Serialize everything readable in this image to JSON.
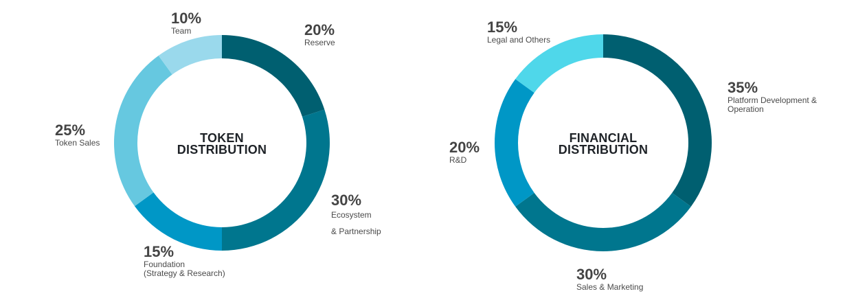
{
  "charts": [
    {
      "title_line1": "TOKEN",
      "title_line2": "DISTRIBUTION",
      "labels": [
        {
          "pct": "20%",
          "desc": "Reserve"
        },
        {
          "pct": "30%",
          "desc": "Ecosystem",
          "desc2": "& Partnership"
        },
        {
          "pct": "15%",
          "desc": "Foundation",
          "desc2": "(Strategy & Research)"
        },
        {
          "pct": "25%",
          "desc": "Token Sales"
        },
        {
          "pct": "10%",
          "desc": "Team"
        }
      ]
    },
    {
      "title_line1": "FINANCIAL",
      "title_line2": "DISTRIBUTION",
      "labels": [
        {
          "pct": "35%",
          "desc": "Platform Development &",
          "desc2": "Operation"
        },
        {
          "pct": "30%",
          "desc": "Sales & Marketing"
        },
        {
          "pct": "20%",
          "desc": "R&D"
        },
        {
          "pct": "15%",
          "desc": "Legal and Others"
        }
      ]
    }
  ],
  "chart_data": [
    {
      "type": "pie",
      "title": "TOKEN DISTRIBUTION",
      "categories": [
        "Reserve",
        "Ecosystem & Partnership",
        "Foundation (Strategy & Research)",
        "Token Sales",
        "Team"
      ],
      "values": [
        20,
        30,
        15,
        25,
        10
      ],
      "colors": [
        "#005f70",
        "#00768e",
        "#0097c6",
        "#66c8e0",
        "#9ad9ec"
      ]
    },
    {
      "type": "pie",
      "title": "FINANCIAL DISTRIBUTION",
      "categories": [
        "Platform Development & Operation",
        "Sales & Marketing",
        "R&D",
        "Legal and Others"
      ],
      "values": [
        35,
        30,
        20,
        15
      ],
      "colors": [
        "#005f70",
        "#00768e",
        "#0097c6",
        "#4fd7ea"
      ]
    }
  ]
}
